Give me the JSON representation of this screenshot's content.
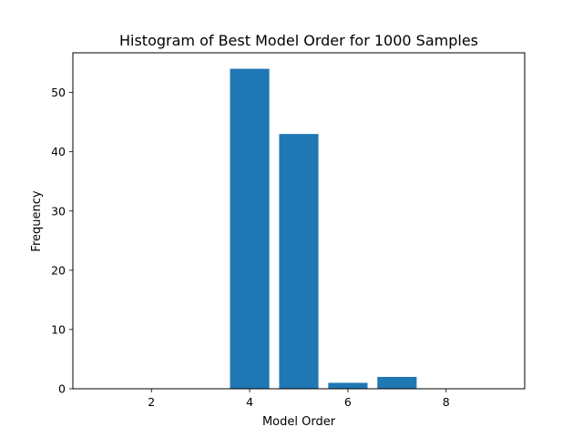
{
  "chart_data": {
    "type": "bar",
    "title": "Histogram of Best Model Order for 1000 Samples",
    "xlabel": "Model Order",
    "ylabel": "Frequency",
    "x": [
      4,
      5,
      6,
      7
    ],
    "values": [
      54,
      43,
      1,
      2
    ],
    "bar_width": 0.8,
    "xlim": [
      0.4,
      9.6
    ],
    "ylim": [
      0,
      56.7
    ],
    "xticks": [
      2,
      4,
      6,
      8
    ],
    "yticks": [
      0,
      10,
      20,
      30,
      40,
      50
    ],
    "bar_color": "#1f77b4",
    "grid": false,
    "legend": "none"
  }
}
